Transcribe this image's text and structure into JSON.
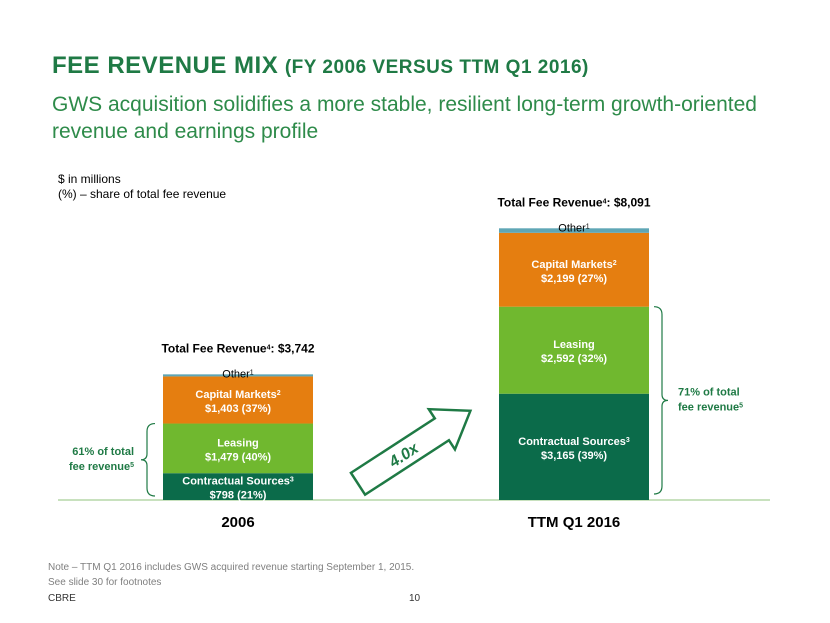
{
  "header": {
    "title_main": "FEE REVENUE MIX",
    "title_sub": "(FY 2006 VERSUS TTM Q1 2016)",
    "subtitle": "GWS acquisition solidifies a more stable, resilient long-term growth-oriented revenue and earnings profile"
  },
  "units_note": {
    "line1": "$ in millions",
    "line2": "(%) – share of total fee revenue"
  },
  "chart_data": {
    "type": "bar",
    "stacked": true,
    "categories": [
      "2006",
      "TTM Q1 2016"
    ],
    "totals": [
      {
        "label": "Total Fee Revenue",
        "sup": "4",
        "value": "$3,742"
      },
      {
        "label": "Total Fee Revenue",
        "sup": "4",
        "value": "$8,091"
      }
    ],
    "series": [
      {
        "name": "Contractual Sources",
        "sup": "3",
        "color": "#0b6b4a",
        "values": [
          798,
          3165
        ],
        "labels": [
          "$798 (21%)",
          "$3,165 (39%)"
        ]
      },
      {
        "name": "Leasing",
        "sup": "",
        "color": "#70b82f",
        "values": [
          1479,
          2592
        ],
        "labels": [
          "$1,479 (40%)",
          "$2,592 (32%)"
        ]
      },
      {
        "name": "Capital Markets",
        "sup": "2",
        "color": "#e57e10",
        "values": [
          1403,
          2199
        ],
        "labels": [
          "$1,403 (37%)",
          "$2,199 (27%)"
        ]
      },
      {
        "name": "Other",
        "sup": "1",
        "color": "#5fa6b5",
        "values": [
          62,
          135
        ],
        "labels": [
          "",
          ""
        ]
      }
    ],
    "ylim": [
      0,
      8100
    ],
    "brackets": [
      {
        "text1": "61% of total",
        "text2": "fee revenue",
        "sup": "5"
      },
      {
        "text1": "71% of total",
        "text2": "fee revenue",
        "sup": "5"
      }
    ],
    "growth_arrow_label": "4.0x"
  },
  "notes": {
    "line1": "Note – TTM Q1 2016 includes GWS acquired revenue starting September 1, 2015.",
    "line2": "See slide 30 for footnotes"
  },
  "footer": {
    "brand": "CBRE",
    "page": "10"
  }
}
